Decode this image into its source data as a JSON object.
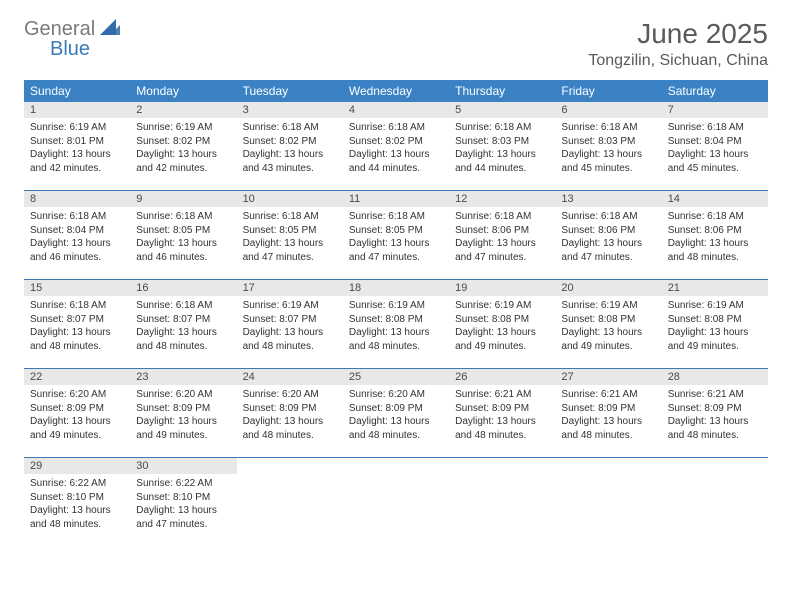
{
  "logo": {
    "text_general": "General",
    "text_blue": "Blue",
    "mark_color": "#2f6ca8"
  },
  "title": "June 2025",
  "subtitle": "Tongzilin, Sichuan, China",
  "colors": {
    "header_bg": "#3a82c4",
    "header_text": "#ffffff",
    "daynum_bg": "#e8e8e8",
    "row_border": "#3a7ab8",
    "body_text": "#333333",
    "title_text": "#5a5a5a"
  },
  "weekdays": [
    "Sunday",
    "Monday",
    "Tuesday",
    "Wednesday",
    "Thursday",
    "Friday",
    "Saturday"
  ],
  "weeks": [
    [
      {
        "n": "1",
        "sunrise": "Sunrise: 6:19 AM",
        "sunset": "Sunset: 8:01 PM",
        "day1": "Daylight: 13 hours",
        "day2": "and 42 minutes."
      },
      {
        "n": "2",
        "sunrise": "Sunrise: 6:19 AM",
        "sunset": "Sunset: 8:02 PM",
        "day1": "Daylight: 13 hours",
        "day2": "and 42 minutes."
      },
      {
        "n": "3",
        "sunrise": "Sunrise: 6:18 AM",
        "sunset": "Sunset: 8:02 PM",
        "day1": "Daylight: 13 hours",
        "day2": "and 43 minutes."
      },
      {
        "n": "4",
        "sunrise": "Sunrise: 6:18 AM",
        "sunset": "Sunset: 8:02 PM",
        "day1": "Daylight: 13 hours",
        "day2": "and 44 minutes."
      },
      {
        "n": "5",
        "sunrise": "Sunrise: 6:18 AM",
        "sunset": "Sunset: 8:03 PM",
        "day1": "Daylight: 13 hours",
        "day2": "and 44 minutes."
      },
      {
        "n": "6",
        "sunrise": "Sunrise: 6:18 AM",
        "sunset": "Sunset: 8:03 PM",
        "day1": "Daylight: 13 hours",
        "day2": "and 45 minutes."
      },
      {
        "n": "7",
        "sunrise": "Sunrise: 6:18 AM",
        "sunset": "Sunset: 8:04 PM",
        "day1": "Daylight: 13 hours",
        "day2": "and 45 minutes."
      }
    ],
    [
      {
        "n": "8",
        "sunrise": "Sunrise: 6:18 AM",
        "sunset": "Sunset: 8:04 PM",
        "day1": "Daylight: 13 hours",
        "day2": "and 46 minutes."
      },
      {
        "n": "9",
        "sunrise": "Sunrise: 6:18 AM",
        "sunset": "Sunset: 8:05 PM",
        "day1": "Daylight: 13 hours",
        "day2": "and 46 minutes."
      },
      {
        "n": "10",
        "sunrise": "Sunrise: 6:18 AM",
        "sunset": "Sunset: 8:05 PM",
        "day1": "Daylight: 13 hours",
        "day2": "and 47 minutes."
      },
      {
        "n": "11",
        "sunrise": "Sunrise: 6:18 AM",
        "sunset": "Sunset: 8:05 PM",
        "day1": "Daylight: 13 hours",
        "day2": "and 47 minutes."
      },
      {
        "n": "12",
        "sunrise": "Sunrise: 6:18 AM",
        "sunset": "Sunset: 8:06 PM",
        "day1": "Daylight: 13 hours",
        "day2": "and 47 minutes."
      },
      {
        "n": "13",
        "sunrise": "Sunrise: 6:18 AM",
        "sunset": "Sunset: 8:06 PM",
        "day1": "Daylight: 13 hours",
        "day2": "and 47 minutes."
      },
      {
        "n": "14",
        "sunrise": "Sunrise: 6:18 AM",
        "sunset": "Sunset: 8:06 PM",
        "day1": "Daylight: 13 hours",
        "day2": "and 48 minutes."
      }
    ],
    [
      {
        "n": "15",
        "sunrise": "Sunrise: 6:18 AM",
        "sunset": "Sunset: 8:07 PM",
        "day1": "Daylight: 13 hours",
        "day2": "and 48 minutes."
      },
      {
        "n": "16",
        "sunrise": "Sunrise: 6:18 AM",
        "sunset": "Sunset: 8:07 PM",
        "day1": "Daylight: 13 hours",
        "day2": "and 48 minutes."
      },
      {
        "n": "17",
        "sunrise": "Sunrise: 6:19 AM",
        "sunset": "Sunset: 8:07 PM",
        "day1": "Daylight: 13 hours",
        "day2": "and 48 minutes."
      },
      {
        "n": "18",
        "sunrise": "Sunrise: 6:19 AM",
        "sunset": "Sunset: 8:08 PM",
        "day1": "Daylight: 13 hours",
        "day2": "and 48 minutes."
      },
      {
        "n": "19",
        "sunrise": "Sunrise: 6:19 AM",
        "sunset": "Sunset: 8:08 PM",
        "day1": "Daylight: 13 hours",
        "day2": "and 49 minutes."
      },
      {
        "n": "20",
        "sunrise": "Sunrise: 6:19 AM",
        "sunset": "Sunset: 8:08 PM",
        "day1": "Daylight: 13 hours",
        "day2": "and 49 minutes."
      },
      {
        "n": "21",
        "sunrise": "Sunrise: 6:19 AM",
        "sunset": "Sunset: 8:08 PM",
        "day1": "Daylight: 13 hours",
        "day2": "and 49 minutes."
      }
    ],
    [
      {
        "n": "22",
        "sunrise": "Sunrise: 6:20 AM",
        "sunset": "Sunset: 8:09 PM",
        "day1": "Daylight: 13 hours",
        "day2": "and 49 minutes."
      },
      {
        "n": "23",
        "sunrise": "Sunrise: 6:20 AM",
        "sunset": "Sunset: 8:09 PM",
        "day1": "Daylight: 13 hours",
        "day2": "and 49 minutes."
      },
      {
        "n": "24",
        "sunrise": "Sunrise: 6:20 AM",
        "sunset": "Sunset: 8:09 PM",
        "day1": "Daylight: 13 hours",
        "day2": "and 48 minutes."
      },
      {
        "n": "25",
        "sunrise": "Sunrise: 6:20 AM",
        "sunset": "Sunset: 8:09 PM",
        "day1": "Daylight: 13 hours",
        "day2": "and 48 minutes."
      },
      {
        "n": "26",
        "sunrise": "Sunrise: 6:21 AM",
        "sunset": "Sunset: 8:09 PM",
        "day1": "Daylight: 13 hours",
        "day2": "and 48 minutes."
      },
      {
        "n": "27",
        "sunrise": "Sunrise: 6:21 AM",
        "sunset": "Sunset: 8:09 PM",
        "day1": "Daylight: 13 hours",
        "day2": "and 48 minutes."
      },
      {
        "n": "28",
        "sunrise": "Sunrise: 6:21 AM",
        "sunset": "Sunset: 8:09 PM",
        "day1": "Daylight: 13 hours",
        "day2": "and 48 minutes."
      }
    ],
    [
      {
        "n": "29",
        "sunrise": "Sunrise: 6:22 AM",
        "sunset": "Sunset: 8:10 PM",
        "day1": "Daylight: 13 hours",
        "day2": "and 48 minutes."
      },
      {
        "n": "30",
        "sunrise": "Sunrise: 6:22 AM",
        "sunset": "Sunset: 8:10 PM",
        "day1": "Daylight: 13 hours",
        "day2": "and 47 minutes."
      },
      {
        "empty": true
      },
      {
        "empty": true
      },
      {
        "empty": true
      },
      {
        "empty": true
      },
      {
        "empty": true
      }
    ]
  ]
}
